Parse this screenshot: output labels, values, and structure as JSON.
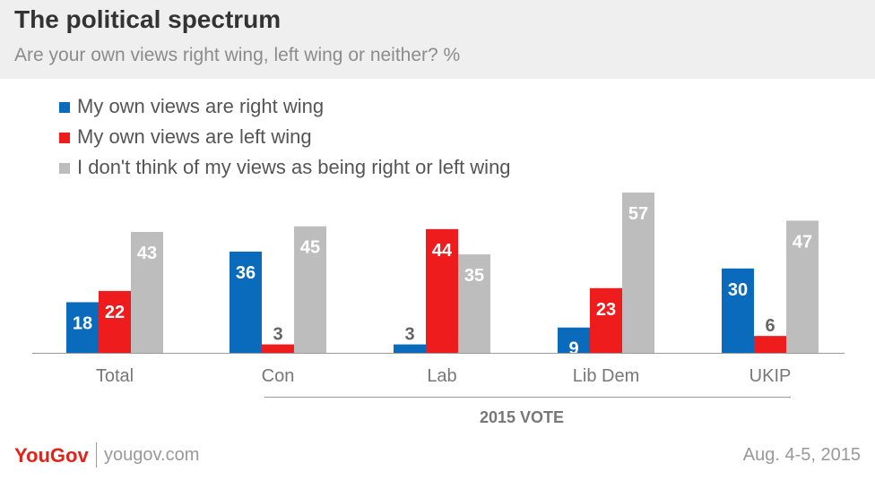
{
  "header": {
    "title": "The political spectrum",
    "subtitle": "Are your own views right wing, left wing or neither? %"
  },
  "legend": [
    {
      "label": "My own views are right wing",
      "color": "#0a6bbd"
    },
    {
      "label": "My own views are left wing",
      "color": "#ee1c1c"
    },
    {
      "label": "I don't think of my views as being right or left wing",
      "color": "#bdbdbd"
    }
  ],
  "chart_data": {
    "type": "bar",
    "title": "The political spectrum",
    "subtitle": "Are your own views right wing, left wing or neither? %",
    "categories": [
      "Total",
      "Con",
      "Lab",
      "Lib Dem",
      "UKIP"
    ],
    "series": [
      {
        "name": "My own views are right wing",
        "color": "#0a6bbd",
        "values": [
          18,
          36,
          3,
          9,
          30
        ]
      },
      {
        "name": "My own views are left wing",
        "color": "#ee1c1c",
        "values": [
          22,
          3,
          44,
          23,
          6
        ]
      },
      {
        "name": "I don't think of my views as being right or left wing",
        "color": "#bdbdbd",
        "values": [
          43,
          45,
          35,
          57,
          47
        ]
      }
    ],
    "group_label": "2015 VOTE",
    "ylim": [
      0,
      57
    ],
    "grid": false,
    "legend_position": "top-left"
  },
  "footer": {
    "logo": "YouGov",
    "site": "yougov.com",
    "date": "Aug. 4-5, 2015"
  }
}
